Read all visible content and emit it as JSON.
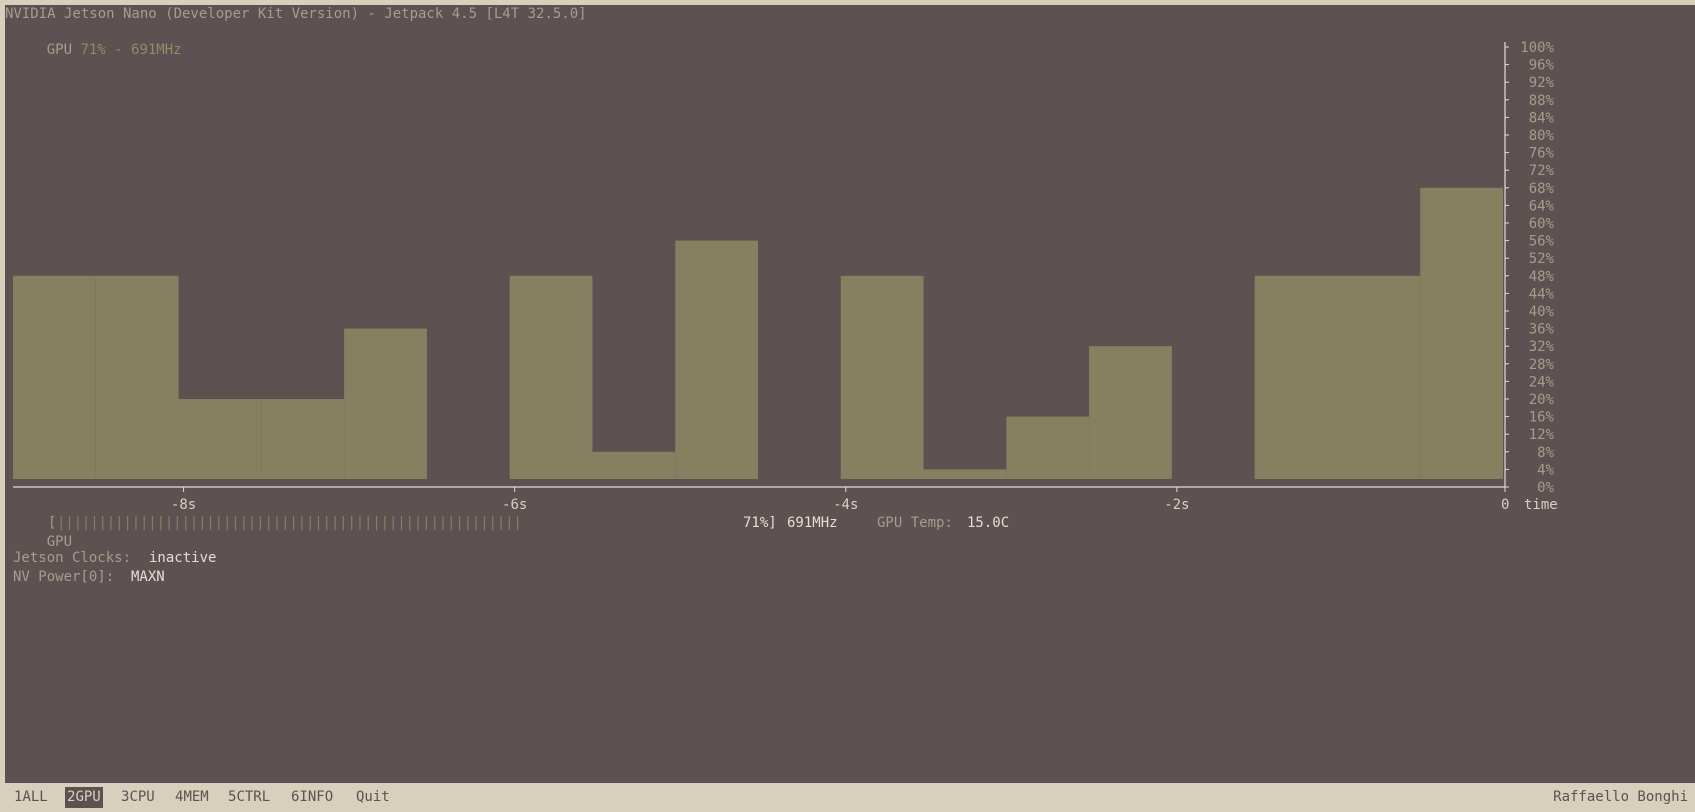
{
  "header": {
    "title": "NVIDIA Jetson Nano (Developer Kit Version) - Jetpack 4.5 [L4T 32.5.0]",
    "gpu_label": "GPU",
    "gpu_summary": "71% - 691MHz"
  },
  "chart_data": {
    "type": "bar",
    "title": "",
    "xlabel": "time",
    "ylabel": "",
    "xlim": [
      -9,
      0
    ],
    "ylim": [
      0,
      100
    ],
    "y_ticks": [
      "100%",
      "96%",
      "92%",
      "88%",
      "84%",
      "80%",
      "76%",
      "72%",
      "68%",
      "64%",
      "60%",
      "56%",
      "52%",
      "48%",
      "44%",
      "40%",
      "36%",
      "32%",
      "28%",
      "24%",
      "20%",
      "16%",
      "12%",
      "8%",
      "4%",
      "0%"
    ],
    "x_ticks": [
      "-8s",
      "-6s",
      "-4s",
      "-2s",
      "0"
    ],
    "x_tick_values": [
      -8,
      -6,
      -4,
      -2,
      0
    ],
    "bars": [
      {
        "start": -9.0,
        "end": -8.5,
        "value": 48
      },
      {
        "start": -8.5,
        "end": -8.0,
        "value": 48
      },
      {
        "start": -8.0,
        "end": -7.5,
        "value": 20
      },
      {
        "start": -7.5,
        "end": -7.0,
        "value": 20
      },
      {
        "start": -7.0,
        "end": -6.5,
        "value": 36
      },
      {
        "start": -6.5,
        "end": -6.0,
        "value": 0
      },
      {
        "start": -6.0,
        "end": -5.5,
        "value": 48
      },
      {
        "start": -5.5,
        "end": -5.0,
        "value": 8
      },
      {
        "start": -5.0,
        "end": -4.5,
        "value": 56
      },
      {
        "start": -4.5,
        "end": -4.0,
        "value": 0
      },
      {
        "start": -4.0,
        "end": -3.5,
        "value": 48
      },
      {
        "start": -3.5,
        "end": -3.0,
        "value": 4
      },
      {
        "start": -3.0,
        "end": -2.5,
        "value": 16
      },
      {
        "start": -2.5,
        "end": -2.0,
        "value": 32
      },
      {
        "start": -2.0,
        "end": -1.5,
        "value": 0
      },
      {
        "start": -1.5,
        "end": -1.0,
        "value": 48
      },
      {
        "start": -1.0,
        "end": -0.5,
        "value": 48
      },
      {
        "start": -0.5,
        "end": 0.0,
        "value": 68
      }
    ],
    "bar_color": "#867f60"
  },
  "gpu_bar": {
    "label": "GPU",
    "open_bracket": "[",
    "fill": "||||||||||||||||||||||||||||||||||||||||||||||||||||||||",
    "percent": "71%]",
    "freq": "691MHz",
    "temp_label": "GPU Temp:",
    "temp_value": "15.0C"
  },
  "info": {
    "clocks_label": "Jetson Clocks:",
    "clocks_value": "inactive",
    "power_label": "NV Power[0]:",
    "power_value": "MAXN"
  },
  "tabs": [
    {
      "num": "1",
      "label": "ALL"
    },
    {
      "num": "2",
      "label": "GPU"
    },
    {
      "num": "3",
      "label": "CPU"
    },
    {
      "num": "4",
      "label": "MEM"
    },
    {
      "num": "5",
      "label": "CTRL"
    },
    {
      "num": "6",
      "label": "INFO"
    },
    {
      "num": "",
      "label": "Quit"
    }
  ],
  "active_tab_index": 1,
  "author": "Raffaello Bonghi"
}
